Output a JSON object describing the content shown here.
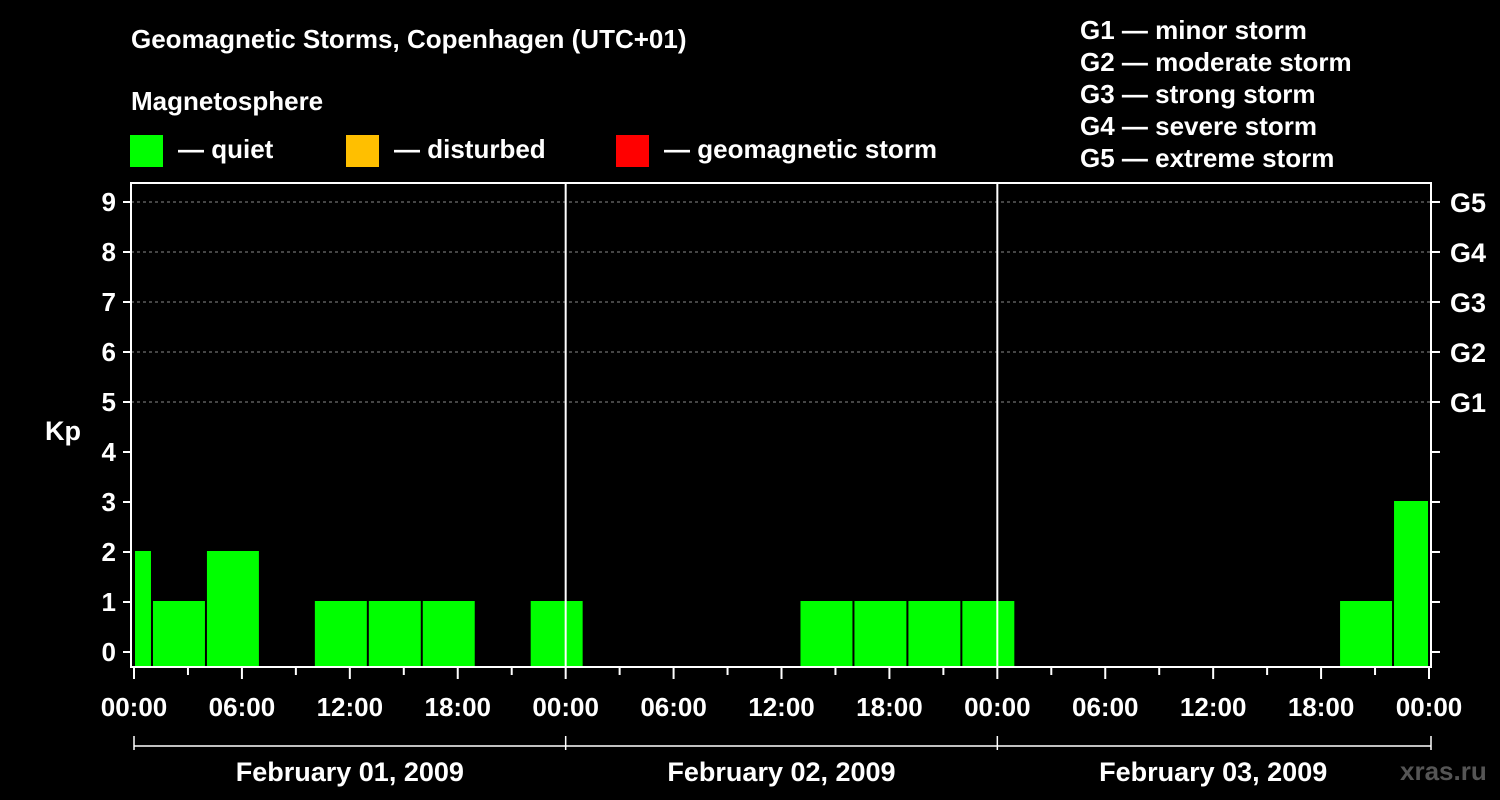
{
  "header": {
    "title": "Geomagnetic Storms, Copenhagen (UTC+01)",
    "magnetosphere_label": "Magnetosphere"
  },
  "legend": {
    "items": [
      {
        "label": "— quiet",
        "color": "#00ff00"
      },
      {
        "label": "— disturbed",
        "color": "#ffbf00"
      },
      {
        "label": "— geomagnetic storm",
        "color": "#ff0000"
      }
    ],
    "storm_levels": [
      "G1 — minor storm",
      "G2 — moderate storm",
      "G3 — strong storm",
      "G4 — severe storm",
      "G5 — extreme storm"
    ]
  },
  "watermark": "xras.ru",
  "chart_data": {
    "type": "bar",
    "title": "Geomagnetic Storms, Copenhagen (UTC+01)",
    "ylabel": "Kp",
    "ylim": [
      0,
      9
    ],
    "yticks": [
      0,
      1,
      2,
      3,
      4,
      5,
      6,
      7,
      8,
      9
    ],
    "right_ticks": [
      {
        "kp": 5,
        "label": "G1"
      },
      {
        "kp": 6,
        "label": "G2"
      },
      {
        "kp": 7,
        "label": "G3"
      },
      {
        "kp": 8,
        "label": "G4"
      },
      {
        "kp": 9,
        "label": "G5"
      }
    ],
    "xlim_hours": [
      0,
      72
    ],
    "xtick_labels": [
      "00:00",
      "06:00",
      "12:00",
      "18:00",
      "00:00",
      "06:00",
      "12:00",
      "18:00",
      "00:00",
      "06:00",
      "12:00",
      "18:00",
      "00:00"
    ],
    "days": [
      "February 01, 2009",
      "February 02, 2009",
      "February 03, 2009"
    ],
    "bars": [
      {
        "start": 0,
        "end": 1,
        "kp": 2,
        "level": "quiet"
      },
      {
        "start": 1,
        "end": 4,
        "kp": 1,
        "level": "quiet"
      },
      {
        "start": 4,
        "end": 7,
        "kp": 2,
        "level": "quiet"
      },
      {
        "start": 10,
        "end": 13,
        "kp": 1,
        "level": "quiet"
      },
      {
        "start": 13,
        "end": 16,
        "kp": 1,
        "level": "quiet"
      },
      {
        "start": 16,
        "end": 19,
        "kp": 1,
        "level": "quiet"
      },
      {
        "start": 22,
        "end": 25,
        "kp": 1,
        "level": "quiet"
      },
      {
        "start": 37,
        "end": 40,
        "kp": 1,
        "level": "quiet"
      },
      {
        "start": 40,
        "end": 43,
        "kp": 1,
        "level": "quiet"
      },
      {
        "start": 43,
        "end": 46,
        "kp": 1,
        "level": "quiet"
      },
      {
        "start": 46,
        "end": 49,
        "kp": 1,
        "level": "quiet"
      },
      {
        "start": 67,
        "end": 70,
        "kp": 1,
        "level": "quiet"
      },
      {
        "start": 70,
        "end": 72,
        "kp": 3,
        "level": "quiet"
      }
    ]
  }
}
